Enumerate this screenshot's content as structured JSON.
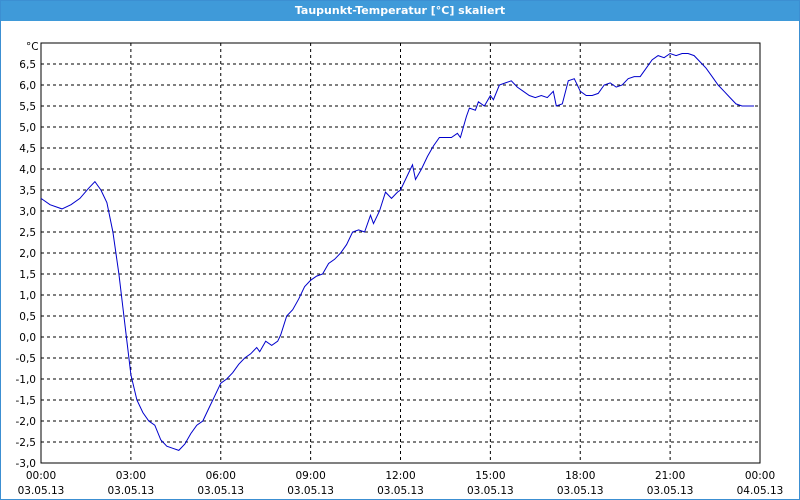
{
  "window": {
    "title": "Taupunkt-Temperatur [°C] skaliert"
  },
  "chart_data": {
    "type": "line",
    "title": "Taupunkt-Temperatur [°C] skaliert",
    "ylabel": "°C",
    "xlabel": "",
    "grid": true,
    "colors": {
      "line": "#0000cc",
      "grid": "#000000",
      "titlebar": "#3f9ad9"
    },
    "xlim": [
      0,
      24
    ],
    "ylim": [
      -3.0,
      7.0
    ],
    "x_ticks": [
      {
        "time": "00:00",
        "date": "03.05.13"
      },
      {
        "time": "03:00",
        "date": "03.05.13"
      },
      {
        "time": "06:00",
        "date": "03.05.13"
      },
      {
        "time": "09:00",
        "date": "03.05.13"
      },
      {
        "time": "12:00",
        "date": "03.05.13"
      },
      {
        "time": "15:00",
        "date": "03.05.13"
      },
      {
        "time": "18:00",
        "date": "03.05.13"
      },
      {
        "time": "21:00",
        "date": "03.05.13"
      },
      {
        "time": "00:00",
        "date": "04.05.13"
      }
    ],
    "y_ticks": [
      "6,5",
      "6,0",
      "5,5",
      "5,0",
      "4,5",
      "4,0",
      "3,5",
      "3,0",
      "2,5",
      "2,0",
      "1,5",
      "1,0",
      "0,5",
      "0,0",
      "-0,5",
      "-1,0",
      "-1,5",
      "-2,0",
      "-2,5",
      "-3,0"
    ],
    "series": [
      {
        "points": [
          [
            0.0,
            3.3
          ],
          [
            0.3,
            3.15
          ],
          [
            0.7,
            3.05
          ],
          [
            1.0,
            3.15
          ],
          [
            1.3,
            3.3
          ],
          [
            1.6,
            3.55
          ],
          [
            1.8,
            3.7
          ],
          [
            2.0,
            3.5
          ],
          [
            2.2,
            3.2
          ],
          [
            2.4,
            2.5
          ],
          [
            2.6,
            1.5
          ],
          [
            2.8,
            0.3
          ],
          [
            3.0,
            -0.9
          ],
          [
            3.2,
            -1.5
          ],
          [
            3.4,
            -1.8
          ],
          [
            3.6,
            -2.0
          ],
          [
            3.8,
            -2.1
          ],
          [
            4.0,
            -2.45
          ],
          [
            4.2,
            -2.6
          ],
          [
            4.4,
            -2.65
          ],
          [
            4.6,
            -2.7
          ],
          [
            4.8,
            -2.55
          ],
          [
            5.0,
            -2.3
          ],
          [
            5.2,
            -2.1
          ],
          [
            5.4,
            -2.0
          ],
          [
            5.6,
            -1.7
          ],
          [
            5.8,
            -1.4
          ],
          [
            6.0,
            -1.1
          ],
          [
            6.2,
            -1.0
          ],
          [
            6.4,
            -0.85
          ],
          [
            6.6,
            -0.65
          ],
          [
            6.8,
            -0.5
          ],
          [
            7.0,
            -0.4
          ],
          [
            7.2,
            -0.25
          ],
          [
            7.3,
            -0.35
          ],
          [
            7.5,
            -0.1
          ],
          [
            7.7,
            -0.2
          ],
          [
            7.9,
            -0.1
          ],
          [
            8.0,
            0.05
          ],
          [
            8.2,
            0.5
          ],
          [
            8.4,
            0.65
          ],
          [
            8.6,
            0.9
          ],
          [
            8.8,
            1.2
          ],
          [
            9.0,
            1.35
          ],
          [
            9.2,
            1.45
          ],
          [
            9.4,
            1.5
          ],
          [
            9.6,
            1.75
          ],
          [
            9.8,
            1.85
          ],
          [
            10.0,
            2.0
          ],
          [
            10.2,
            2.2
          ],
          [
            10.4,
            2.5
          ],
          [
            10.6,
            2.55
          ],
          [
            10.8,
            2.5
          ],
          [
            11.0,
            2.9
          ],
          [
            11.1,
            2.7
          ],
          [
            11.3,
            3.0
          ],
          [
            11.5,
            3.45
          ],
          [
            11.7,
            3.3
          ],
          [
            11.9,
            3.45
          ],
          [
            12.0,
            3.5
          ],
          [
            12.2,
            3.8
          ],
          [
            12.4,
            4.1
          ],
          [
            12.5,
            3.75
          ],
          [
            12.7,
            4.0
          ],
          [
            12.9,
            4.3
          ],
          [
            13.1,
            4.55
          ],
          [
            13.3,
            4.75
          ],
          [
            13.5,
            4.75
          ],
          [
            13.7,
            4.75
          ],
          [
            13.9,
            4.85
          ],
          [
            14.0,
            4.75
          ],
          [
            14.2,
            5.25
          ],
          [
            14.3,
            5.45
          ],
          [
            14.5,
            5.4
          ],
          [
            14.6,
            5.6
          ],
          [
            14.8,
            5.5
          ],
          [
            15.0,
            5.75
          ],
          [
            15.1,
            5.65
          ],
          [
            15.3,
            6.0
          ],
          [
            15.5,
            6.05
          ],
          [
            15.7,
            6.1
          ],
          [
            15.9,
            5.95
          ],
          [
            16.1,
            5.85
          ],
          [
            16.3,
            5.75
          ],
          [
            16.5,
            5.7
          ],
          [
            16.7,
            5.75
          ],
          [
            16.9,
            5.7
          ],
          [
            17.1,
            5.85
          ],
          [
            17.2,
            5.5
          ],
          [
            17.4,
            5.55
          ],
          [
            17.6,
            6.1
          ],
          [
            17.8,
            6.15
          ],
          [
            18.0,
            5.85
          ],
          [
            18.2,
            5.75
          ],
          [
            18.4,
            5.75
          ],
          [
            18.6,
            5.8
          ],
          [
            18.8,
            6.0
          ],
          [
            19.0,
            6.05
          ],
          [
            19.2,
            5.95
          ],
          [
            19.4,
            6.0
          ],
          [
            19.6,
            6.15
          ],
          [
            19.8,
            6.2
          ],
          [
            20.0,
            6.2
          ],
          [
            20.2,
            6.4
          ],
          [
            20.4,
            6.6
          ],
          [
            20.6,
            6.7
          ],
          [
            20.8,
            6.65
          ],
          [
            21.0,
            6.75
          ],
          [
            21.2,
            6.7
          ],
          [
            21.4,
            6.75
          ],
          [
            21.6,
            6.75
          ],
          [
            21.8,
            6.7
          ],
          [
            22.0,
            6.55
          ],
          [
            22.2,
            6.4
          ],
          [
            22.4,
            6.2
          ],
          [
            22.6,
            6.0
          ],
          [
            22.8,
            5.85
          ],
          [
            23.0,
            5.7
          ],
          [
            23.2,
            5.55
          ],
          [
            23.4,
            5.5
          ],
          [
            23.6,
            5.5
          ],
          [
            23.8,
            5.5
          ]
        ]
      }
    ]
  }
}
